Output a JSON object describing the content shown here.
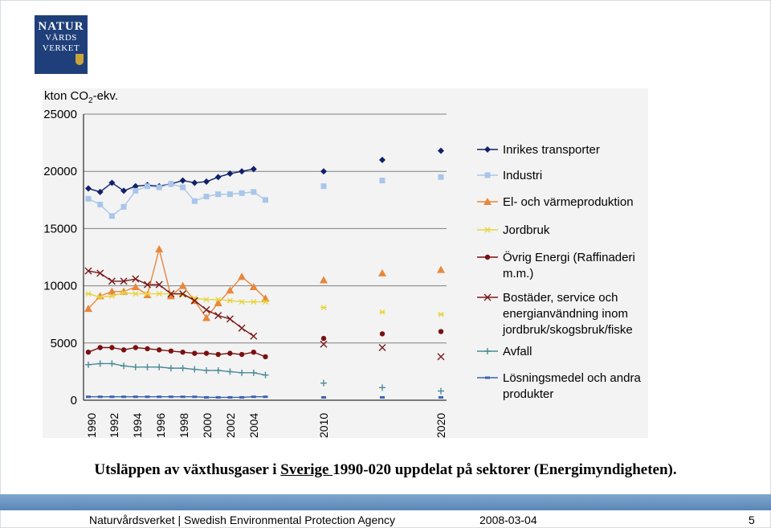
{
  "logo": {
    "line1": "NATUR",
    "line2": "VÅRDS",
    "line3": "VERKET"
  },
  "chart_data": {
    "type": "line",
    "ylabel_prefix": "kton CO",
    "ylabel_sub": "2",
    "ylabel_suffix": "-ekv.",
    "ylim": [
      0,
      25000
    ],
    "y_ticks": [
      "0",
      "5000",
      "10000",
      "15000",
      "20000",
      "25000"
    ],
    "x_tick_labels": [
      "1990",
      "1992",
      "1994",
      "1996",
      "1998",
      "2000",
      "2002",
      "2004",
      "2010",
      "2020"
    ],
    "grid": true,
    "legend_position": "right",
    "series": [
      {
        "name": "Inrikes transporter",
        "color": "#10206b",
        "marker": "diamond",
        "line": true,
        "values": [
          18500,
          18200,
          19000,
          18300,
          18700,
          18800,
          18700,
          18900,
          19200,
          19000,
          19100,
          19500,
          19800,
          20000,
          20200
        ],
        "projections": [
          20000,
          21000,
          21800
        ]
      },
      {
        "name": "Industri",
        "color": "#a9c6ea",
        "marker": "square",
        "line": true,
        "values": [
          17600,
          17100,
          16100,
          16900,
          18300,
          18700,
          18600,
          18900,
          18600,
          17400,
          17800,
          18000,
          18000,
          18100,
          18200,
          17500
        ],
        "projections": [
          18700,
          19200,
          19500
        ]
      },
      {
        "name": "El- och värmeproduktion",
        "color": "#e8873a",
        "marker": "triangle",
        "line": true,
        "values": [
          8000,
          9100,
          9500,
          9500,
          9900,
          9200,
          13200,
          9100,
          10000,
          8700,
          7200,
          8500,
          9600,
          10800,
          9900,
          8900
        ],
        "projections": [
          10500,
          11100,
          11400
        ]
      },
      {
        "name": "Jordbruk",
        "color": "#e8d440",
        "marker": "asterisk",
        "line": true,
        "values": [
          9300,
          9000,
          9100,
          9400,
          9300,
          9300,
          9300,
          9300,
          9200,
          8900,
          8800,
          8800,
          8700,
          8600,
          8600,
          8600
        ],
        "projections": [
          8100,
          7700,
          7500
        ]
      },
      {
        "name": "Övrig Energi (Raffinaderi m.m.)",
        "color": "#7a1010",
        "marker": "circle",
        "line": true,
        "values": [
          4200,
          4600,
          4600,
          4400,
          4600,
          4500,
          4400,
          4300,
          4200,
          4100,
          4100,
          4000,
          4100,
          4000,
          4200,
          3800
        ],
        "projections": [
          5400,
          5800,
          6000
        ]
      },
      {
        "name": "Bostäder, service och energianvändning inom jordbruk/skogsbruk/fiske",
        "color": "#7a1a1a",
        "marker": "x",
        "line": true,
        "values": [
          11300,
          11100,
          10400,
          10400,
          10600,
          10100,
          10100,
          9300,
          9300,
          8700,
          7900,
          7400,
          7100,
          6300,
          5600
        ],
        "projections": [
          4900,
          4600,
          3800
        ]
      },
      {
        "name": "Avfall",
        "color": "#4a8a95",
        "marker": "plus",
        "line": true,
        "values": [
          3100,
          3200,
          3200,
          3000,
          2900,
          2900,
          2900,
          2800,
          2800,
          2700,
          2600,
          2600,
          2500,
          2400,
          2400,
          2200
        ],
        "projections": [
          1500,
          1100,
          800
        ]
      },
      {
        "name": "Lösningsmedel och andra produkter",
        "color": "#3b62b5",
        "marker": "dash",
        "line": true,
        "values": [
          300,
          300,
          300,
          300,
          300,
          300,
          300,
          300,
          300,
          300,
          250,
          250,
          250,
          250,
          300,
          300
        ],
        "projections": [
          250,
          250,
          250
        ]
      }
    ]
  },
  "legend_lines": [
    [
      "Inrikes transporter"
    ],
    [
      "Industri"
    ],
    [
      "El- och värmeproduktion"
    ],
    [
      "Jordbruk"
    ],
    [
      "Övrig Energi (Raffinaderi",
      "m.m.)"
    ],
    [
      "Bostäder, service och",
      "energianvändning inom",
      "jordbruk/skogsbruk/fiske"
    ],
    [
      "Avfall"
    ],
    [
      "Lösningsmedel och andra",
      "produkter"
    ]
  ],
  "caption": {
    "before": "Utsläppen av växthusgaser i ",
    "link": "Sverige ",
    "after": "1990-020 uppdelat på sektorer (Energimyndigheten)."
  },
  "footer": {
    "org": "Naturvårdsverket | Swedish Environmental Protection Agency",
    "date": "2008-03-04",
    "page": "5"
  }
}
